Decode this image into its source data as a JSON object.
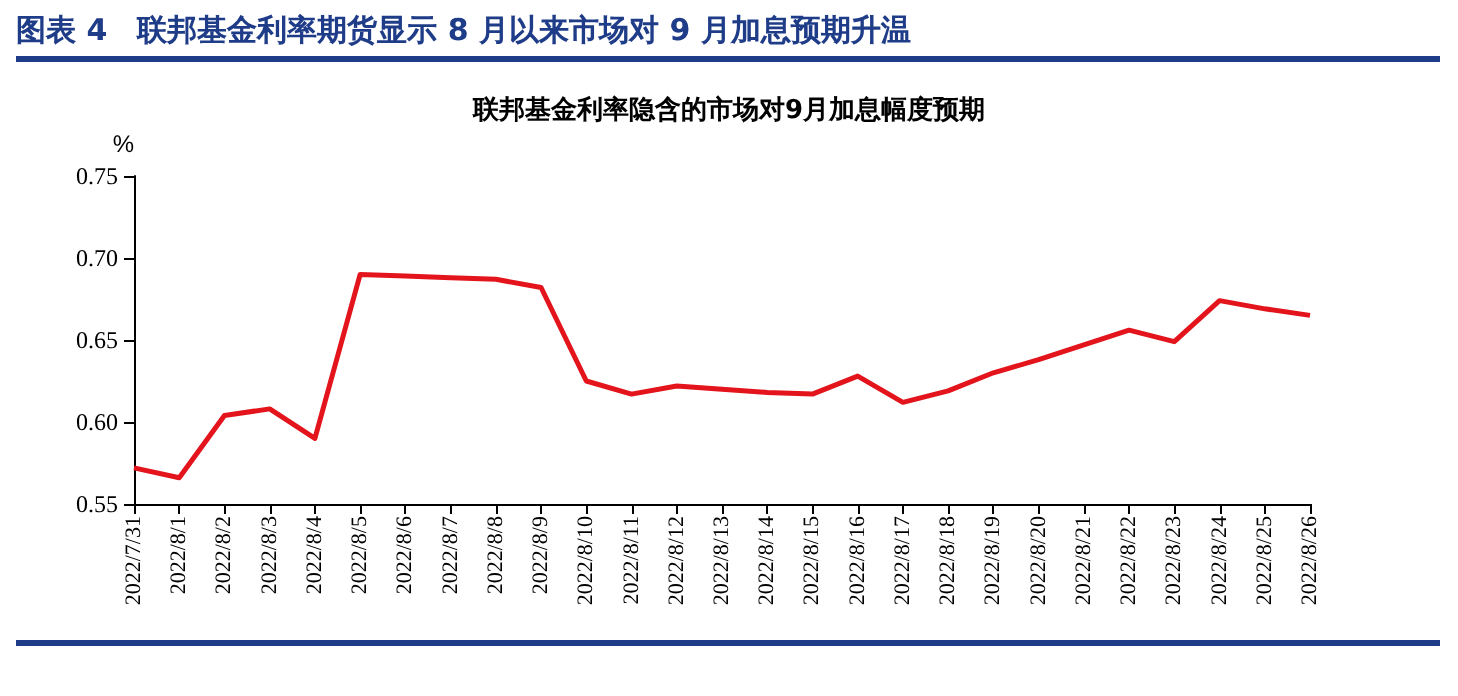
{
  "chart_data": {
    "type": "line",
    "title": "图表 4　联邦基金利率期货显示 8 月以来市场对 9 月加息预期升温",
    "subtitle": "联邦基金利率隐含的市场对9月加息幅度预期",
    "ylabel": "%",
    "categories": [
      "2022/7/31",
      "2022/8/1",
      "2022/8/2",
      "2022/8/3",
      "2022/8/4",
      "2022/8/5",
      "2022/8/6",
      "2022/8/7",
      "2022/8/8",
      "2022/8/9",
      "2022/8/10",
      "2022/8/11",
      "2022/8/12",
      "2022/8/13",
      "2022/8/14",
      "2022/8/15",
      "2022/8/16",
      "2022/8/17",
      "2022/8/18",
      "2022/8/19",
      "2022/8/20",
      "2022/8/21",
      "2022/8/22",
      "2022/8/23",
      "2022/8/24",
      "2022/8/25",
      "2022/8/26"
    ],
    "series": [
      {
        "color": "#e3141c",
        "values": [
          0.572,
          0.566,
          0.604,
          0.608,
          0.59,
          0.69,
          0.689,
          0.688,
          0.687,
          0.682,
          0.625,
          0.617,
          0.622,
          0.62,
          0.618,
          0.617,
          0.628,
          0.612,
          0.619,
          0.63,
          0.638,
          0.647,
          0.656,
          0.649,
          0.674,
          0.669,
          0.665
        ]
      }
    ],
    "ylim": [
      0.55,
      0.75
    ],
    "yticks": [
      {
        "value": 0.55,
        "label": "0.55"
      },
      {
        "value": 0.6,
        "label": "0.60"
      },
      {
        "value": 0.65,
        "label": "0.65"
      },
      {
        "value": 0.7,
        "label": "0.70"
      },
      {
        "value": 0.75,
        "label": "0.75"
      }
    ],
    "grid": false,
    "marker": "none",
    "line_style": "solid"
  }
}
